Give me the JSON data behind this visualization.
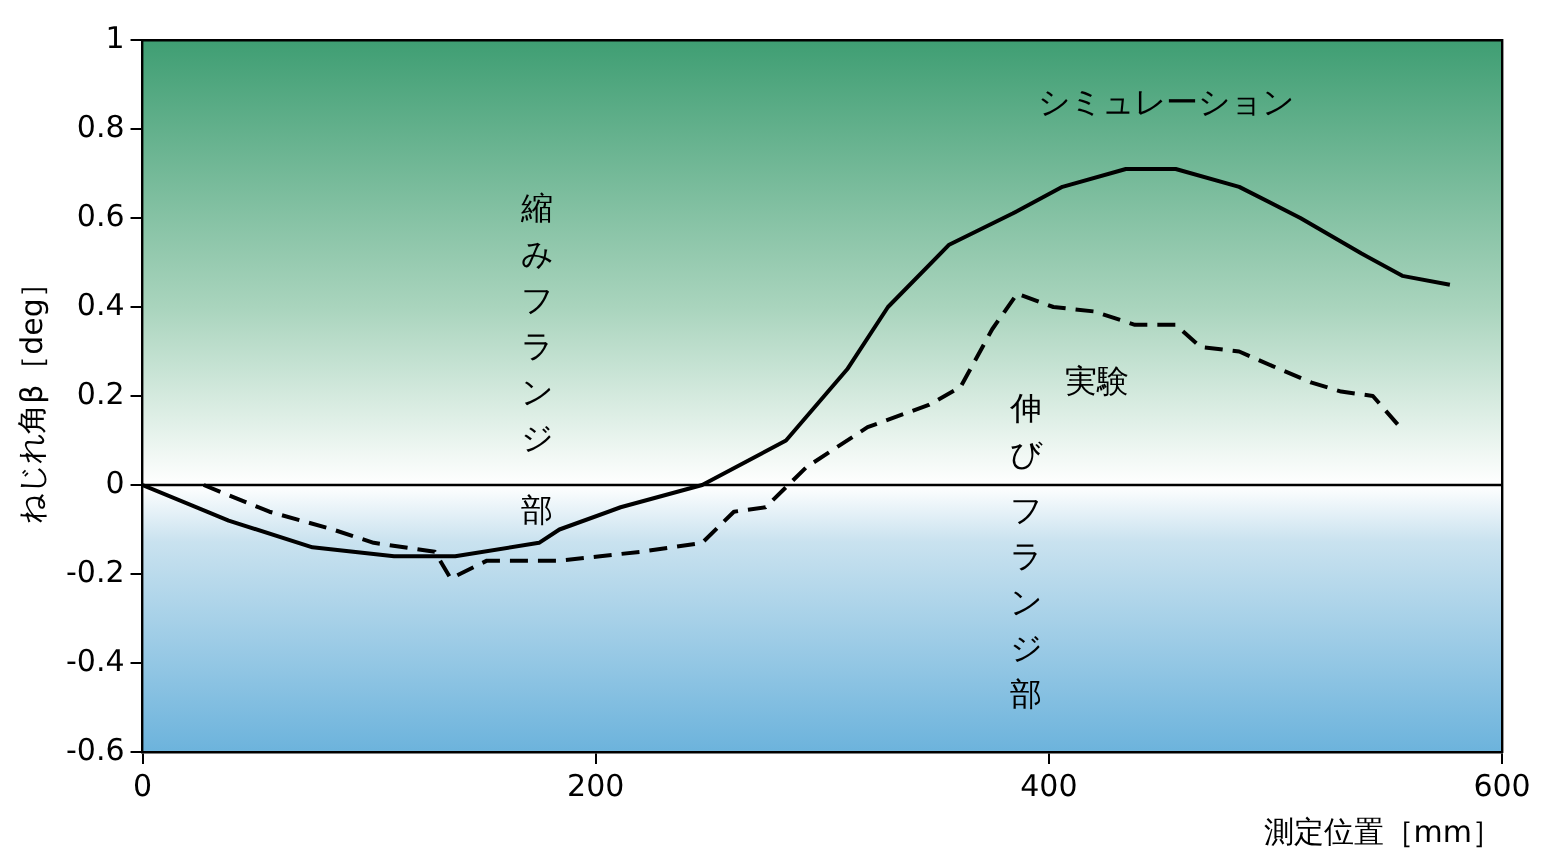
{
  "chart_data": {
    "type": "line",
    "xlabel": "測定位置［mm］",
    "ylabel": "ねじれ角β［deg］",
    "xlim": [
      0,
      600
    ],
    "xticks": [
      0,
      200,
      400,
      600
    ],
    "ylim": [
      -0.6,
      1
    ],
    "yticks": [
      1,
      0.8,
      0.6,
      0.4,
      0.2,
      0,
      -0.2,
      -0.4,
      -0.6
    ],
    "grid": false,
    "legend": false,
    "marker": "none",
    "ref_lines": [
      {
        "axis": "y",
        "value": 0,
        "color": "#000000"
      }
    ],
    "annotations": [
      "縮みフランジ部",
      "伸びフランジ部"
    ],
    "series": [
      {
        "name": "シミュレーション",
        "color": "#000000",
        "line_style": "solid",
        "x": [
          0,
          38,
          75,
          111,
          138,
          175,
          184,
          211,
          247,
          284,
          311,
          329,
          356,
          384,
          406,
          434,
          456,
          484,
          511,
          538,
          556,
          577
        ],
        "values": [
          0,
          -0.08,
          -0.14,
          -0.16,
          -0.16,
          -0.13,
          -0.1,
          -0.05,
          0,
          0.1,
          0.26,
          0.4,
          0.54,
          0.61,
          0.67,
          0.71,
          0.71,
          0.67,
          0.6,
          0.52,
          0.47,
          0.45
        ]
      },
      {
        "name": "実験",
        "color": "#000000",
        "line_style": "dashed",
        "x": [
          27,
          56,
          84,
          102,
          129,
          136,
          152,
          184,
          202,
          220,
          247,
          261,
          275,
          293,
          320,
          347,
          361,
          375,
          386,
          402,
          420,
          438,
          456,
          467,
          484,
          502,
          516,
          529,
          543,
          555
        ],
        "values": [
          0,
          -0.06,
          -0.1,
          -0.13,
          -0.15,
          -0.21,
          -0.17,
          -0.17,
          -0.16,
          -0.15,
          -0.13,
          -0.06,
          -0.05,
          0.04,
          0.13,
          0.18,
          0.22,
          0.35,
          0.43,
          0.4,
          0.39,
          0.36,
          0.36,
          0.31,
          0.3,
          0.26,
          0.23,
          0.21,
          0.2,
          0.13
        ]
      }
    ]
  }
}
